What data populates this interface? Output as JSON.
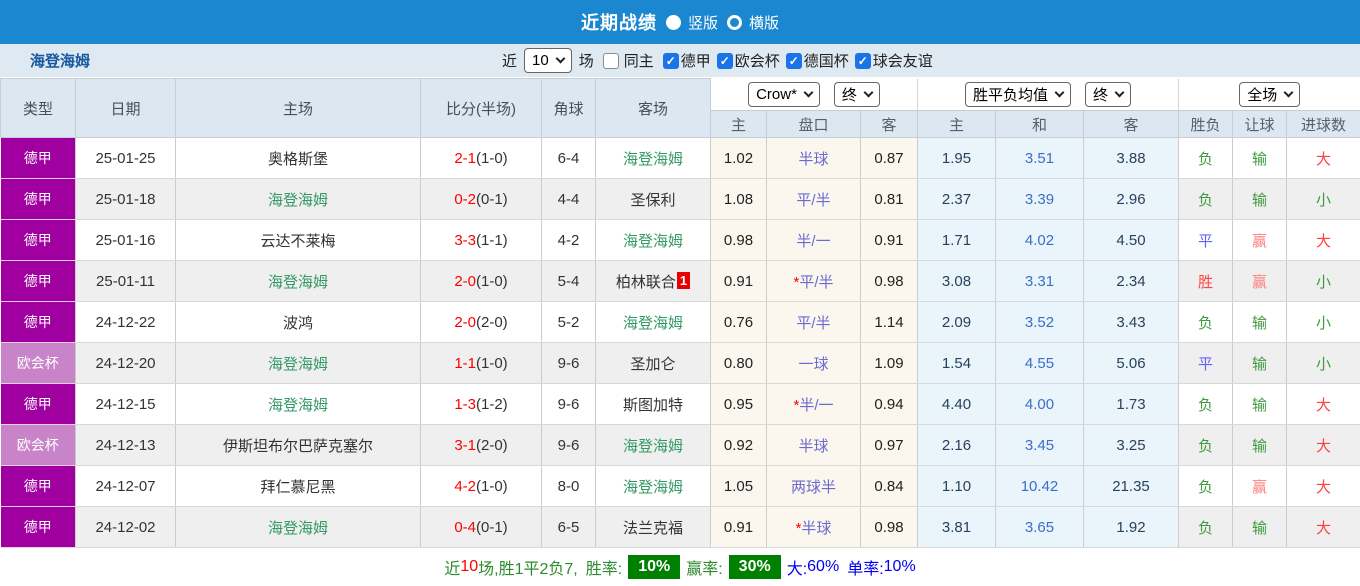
{
  "topbar": {
    "title": "近期战绩",
    "radio_vertical": "竖版",
    "radio_horizontal": "横版"
  },
  "filterbar": {
    "team": "海登海姆",
    "near_label": "近",
    "count_value": "10",
    "games_label": "场",
    "same_home_label": "同主",
    "same_home_checked": false,
    "leagues": [
      {
        "label": "德甲",
        "checked": true
      },
      {
        "label": "欧会杯",
        "checked": true
      },
      {
        "label": "德国杯",
        "checked": true
      },
      {
        "label": "球会友谊",
        "checked": true
      }
    ]
  },
  "table": {
    "static_headers": [
      "类型",
      "日期",
      "主场",
      "比分(半场)",
      "角球",
      "客场"
    ],
    "selects": {
      "company": "Crow*",
      "ah_time": "终",
      "europe": "胜平负均值",
      "eu_time": "终",
      "scope": "全场"
    },
    "sub_headers": [
      "主",
      "盘口",
      "客",
      "主",
      "和",
      "客",
      "胜负",
      "让球",
      "进球数"
    ],
    "rows": [
      {
        "league": "德甲",
        "date": "25-01-25",
        "home": "奥格斯堡",
        "home_self": false,
        "score": "2-1",
        "half": "(1-0)",
        "corners": "6-4",
        "away": "海登海姆",
        "away_self": true,
        "away_badge": "",
        "ah_home": "1.02",
        "handicap": "半球",
        "ah_away": "0.87",
        "eu_home": "1.95",
        "eu_draw": "3.51",
        "eu_away": "3.88",
        "result": "负",
        "handicap_result": "输",
        "goals_result": "大"
      },
      {
        "league": "德甲",
        "date": "25-01-18",
        "home": "海登海姆",
        "home_self": true,
        "score": "0-2",
        "half": "(0-1)",
        "corners": "4-4",
        "away": "圣保利",
        "away_self": false,
        "away_badge": "",
        "ah_home": "1.08",
        "handicap": "平/半",
        "ah_away": "0.81",
        "eu_home": "2.37",
        "eu_draw": "3.39",
        "eu_away": "2.96",
        "result": "负",
        "handicap_result": "输",
        "goals_result": "小"
      },
      {
        "league": "德甲",
        "date": "25-01-16",
        "home": "云达不莱梅",
        "home_self": false,
        "score": "3-3",
        "half": "(1-1)",
        "corners": "4-2",
        "away": "海登海姆",
        "away_self": true,
        "away_badge": "",
        "ah_home": "0.98",
        "handicap": "半/一",
        "ah_away": "0.91",
        "eu_home": "1.71",
        "eu_draw": "4.02",
        "eu_away": "4.50",
        "result": "平",
        "handicap_result": "赢",
        "goals_result": "大"
      },
      {
        "league": "德甲",
        "date": "25-01-11",
        "home": "海登海姆",
        "home_self": true,
        "score": "2-0",
        "half": "(1-0)",
        "corners": "5-4",
        "away": "柏林联合",
        "away_self": false,
        "away_badge": "1",
        "ah_home": "0.91",
        "handicap": "*平/半",
        "ah_away": "0.98",
        "eu_home": "3.08",
        "eu_draw": "3.31",
        "eu_away": "2.34",
        "result": "胜",
        "handicap_result": "赢",
        "goals_result": "小"
      },
      {
        "league": "德甲",
        "date": "24-12-22",
        "home": "波鸿",
        "home_self": false,
        "score": "2-0",
        "half": "(2-0)",
        "corners": "5-2",
        "away": "海登海姆",
        "away_self": true,
        "away_badge": "",
        "ah_home": "0.76",
        "handicap": "平/半",
        "ah_away": "1.14",
        "eu_home": "2.09",
        "eu_draw": "3.52",
        "eu_away": "3.43",
        "result": "负",
        "handicap_result": "输",
        "goals_result": "小"
      },
      {
        "league": "欧会杯",
        "date": "24-12-20",
        "home": "海登海姆",
        "home_self": true,
        "score": "1-1",
        "half": "(1-0)",
        "corners": "9-6",
        "away": "圣加仑",
        "away_self": false,
        "away_badge": "",
        "ah_home": "0.80",
        "handicap": "一球",
        "ah_away": "1.09",
        "eu_home": "1.54",
        "eu_draw": "4.55",
        "eu_away": "5.06",
        "result": "平",
        "handicap_result": "输",
        "goals_result": "小"
      },
      {
        "league": "德甲",
        "date": "24-12-15",
        "home": "海登海姆",
        "home_self": true,
        "score": "1-3",
        "half": "(1-2)",
        "corners": "9-6",
        "away": "斯图加特",
        "away_self": false,
        "away_badge": "",
        "ah_home": "0.95",
        "handicap": "*半/一",
        "ah_away": "0.94",
        "eu_home": "4.40",
        "eu_draw": "4.00",
        "eu_away": "1.73",
        "result": "负",
        "handicap_result": "输",
        "goals_result": "大"
      },
      {
        "league": "欧会杯",
        "date": "24-12-13",
        "home": "伊斯坦布尔巴萨克塞尔",
        "home_self": false,
        "score": "3-1",
        "half": "(2-0)",
        "corners": "9-6",
        "away": "海登海姆",
        "away_self": true,
        "away_badge": "",
        "ah_home": "0.92",
        "handicap": "半球",
        "ah_away": "0.97",
        "eu_home": "2.16",
        "eu_draw": "3.45",
        "eu_away": "3.25",
        "result": "负",
        "handicap_result": "输",
        "goals_result": "大"
      },
      {
        "league": "德甲",
        "date": "24-12-07",
        "home": "拜仁慕尼黑",
        "home_self": false,
        "score": "4-2",
        "half": "(1-0)",
        "corners": "8-0",
        "away": "海登海姆",
        "away_self": true,
        "away_badge": "",
        "ah_home": "1.05",
        "handicap": "两球半",
        "ah_away": "0.84",
        "eu_home": "1.10",
        "eu_draw": "10.42",
        "eu_away": "21.35",
        "result": "负",
        "handicap_result": "赢",
        "goals_result": "大"
      },
      {
        "league": "德甲",
        "date": "24-12-02",
        "home": "海登海姆",
        "home_self": true,
        "score": "0-4",
        "half": "(0-1)",
        "corners": "6-5",
        "away": "法兰克福",
        "away_self": false,
        "away_badge": "",
        "ah_home": "0.91",
        "handicap": "*半球",
        "ah_away": "0.98",
        "eu_home": "3.81",
        "eu_draw": "3.65",
        "eu_away": "1.92",
        "result": "负",
        "handicap_result": "输",
        "goals_result": "大"
      }
    ]
  },
  "summary": {
    "near_label": "近",
    "count": "10",
    "record_text": "场,胜1平2负7,",
    "win_rate_label": "胜率:",
    "win_rate": "10%",
    "ah_rate_label": "赢率:",
    "ah_rate": "30%",
    "big_label": "大:",
    "big_rate": "60%",
    "single_label": "单率:",
    "single_rate": "10%"
  },
  "colors": {
    "topbar_blue": "#1a87d0",
    "league_purple": "#a000a0",
    "cup_purple": "#c983c9",
    "team_green": "#339966",
    "score_red": "#ff0000",
    "handicap_purple": "#6a6ad0",
    "draw_blue": "#3b6fc6",
    "badge_green": "#008000"
  }
}
